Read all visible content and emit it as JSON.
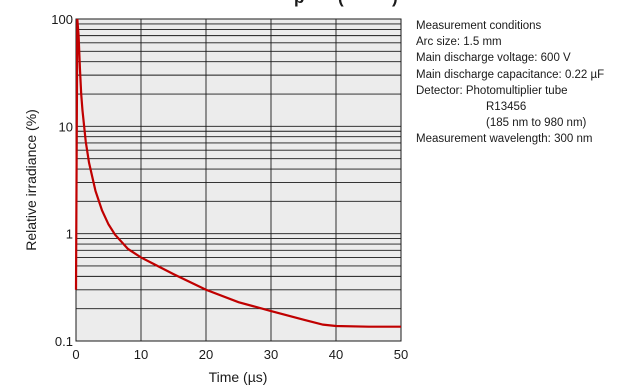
{
  "chart_data": {
    "type": "line",
    "title_fragment": "p",
    "title_fragment_2": "(",
    "title_fragment_3": ")",
    "xlabel": "Time (µs)",
    "ylabel": "Relative irradiance (%)",
    "xlim": [
      0,
      50
    ],
    "ylim": [
      0.1,
      100
    ],
    "y_scale": "log",
    "grid": true,
    "x_ticks": [
      "0",
      "10",
      "20",
      "30",
      "40",
      "50"
    ],
    "y_ticks": [
      "0.1",
      "1",
      "10",
      "100"
    ],
    "line_color": "#c00000",
    "plot_background": "#ececec",
    "series": [
      {
        "x": [
          0,
          0.2,
          0.4,
          0.6,
          0.8,
          1,
          1.5,
          2,
          3,
          4,
          5,
          6,
          8,
          10,
          12,
          15,
          20,
          25,
          30,
          35,
          38,
          40,
          45,
          50
        ],
        "y": [
          0.3,
          100,
          70,
          35,
          20,
          14,
          7.2,
          4.6,
          2.5,
          1.65,
          1.22,
          0.98,
          0.72,
          0.6,
          0.52,
          0.42,
          0.3,
          0.23,
          0.19,
          0.158,
          0.142,
          0.138,
          0.136,
          0.136
        ]
      }
    ]
  },
  "conditions": {
    "heading": "Measurement conditions",
    "arc_size": "Arc size: 1.5 mm",
    "voltage": "Main discharge voltage: 600 V",
    "capacitance": "Main discharge capacitance: 0.22 µF",
    "detector": "Detector: Photomultiplier tube",
    "detector_model": "R13456",
    "detector_range": "(185 nm to 980 nm)",
    "wavelength": "Measurement wavelength: 300 nm"
  }
}
